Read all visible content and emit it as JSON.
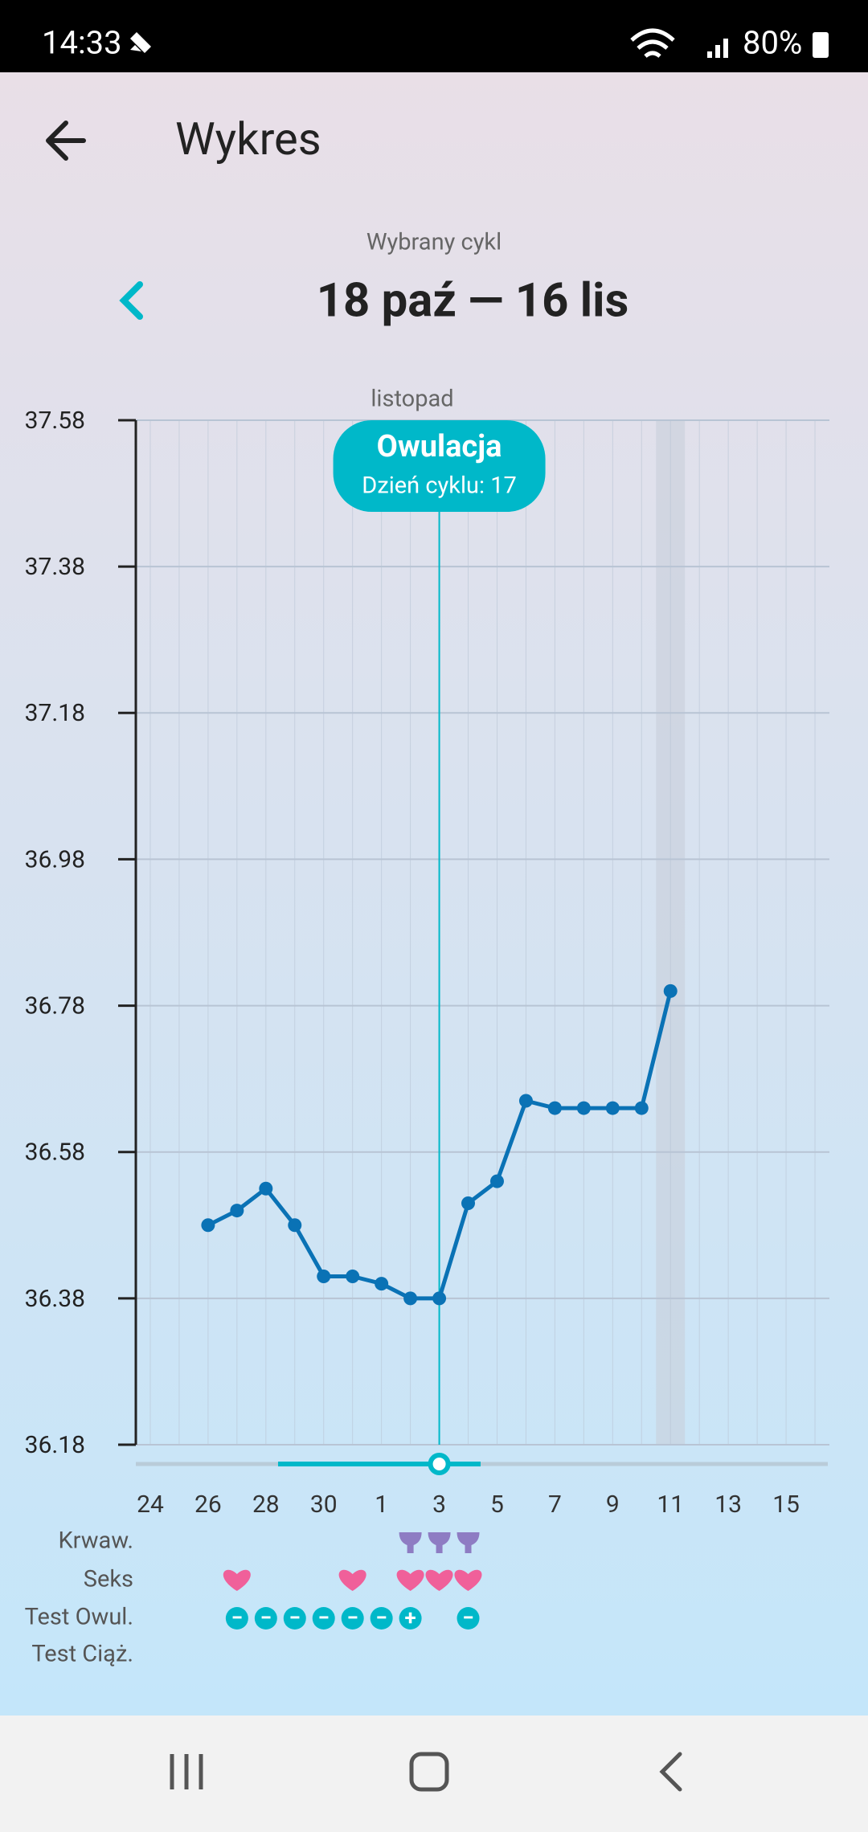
{
  "status_bar": {
    "time": "14:33",
    "battery": "80%"
  },
  "header": {
    "title": "Wykres"
  },
  "cycle": {
    "label": "Wybrany cykl",
    "range": "18 paź — 16 lis"
  },
  "chart_data": {
    "type": "line",
    "month_label": "listopad",
    "categories": [
      "24",
      null,
      "26",
      null,
      "28",
      null,
      "30",
      null,
      "1",
      null,
      "3",
      null,
      "5",
      null,
      "7",
      null,
      "9",
      null,
      "11",
      null,
      "13",
      null,
      "15",
      null
    ],
    "values": [
      null,
      null,
      36.48,
      36.5,
      36.53,
      36.48,
      36.41,
      36.41,
      36.4,
      36.38,
      36.38,
      36.51,
      36.54,
      36.65,
      36.64,
      36.64,
      36.64,
      36.64,
      36.8,
      null,
      null,
      null,
      null,
      null
    ],
    "color": "#0a72b5",
    "ylim": [
      36.18,
      37.58
    ],
    "yticks": [
      36.18,
      36.38,
      36.58,
      36.78,
      36.98,
      37.18,
      37.38,
      37.58
    ],
    "grid": true,
    "highlight_category": "11",
    "annotation": {
      "title": "Owulacja",
      "subtitle": "Dzień cyklu: 17",
      "at": "3",
      "color": "#00b8c9"
    },
    "rows": [
      {
        "label": "Krwaw.",
        "color": "#8e7cc3",
        "values": [
          false,
          false,
          false,
          false,
          false,
          false,
          false,
          false,
          false,
          true,
          true,
          true,
          false,
          false,
          false,
          false,
          false,
          false,
          false,
          false,
          false,
          false,
          false,
          false
        ]
      },
      {
        "label": "Seks",
        "color": "#f0609a",
        "values": [
          false,
          false,
          false,
          true,
          false,
          false,
          false,
          true,
          false,
          true,
          true,
          true,
          false,
          false,
          false,
          false,
          false,
          false,
          false,
          false,
          false,
          false,
          false,
          false
        ]
      },
      {
        "label": "Test Owul.",
        "color": "#00b8c9",
        "values": [
          null,
          null,
          null,
          "−",
          "−",
          "−",
          "−",
          "−",
          "−",
          "+",
          null,
          "−",
          null,
          null,
          null,
          null,
          null,
          null,
          null,
          null,
          null,
          null,
          null,
          null
        ]
      },
      {
        "label": "Test Ciąż.",
        "color": "#00b8c9",
        "values": [
          null,
          null,
          null,
          null,
          null,
          null,
          null,
          null,
          null,
          null,
          null,
          null,
          null,
          null,
          null,
          null,
          null,
          null,
          null,
          null,
          null,
          null,
          null,
          null
        ]
      }
    ]
  }
}
